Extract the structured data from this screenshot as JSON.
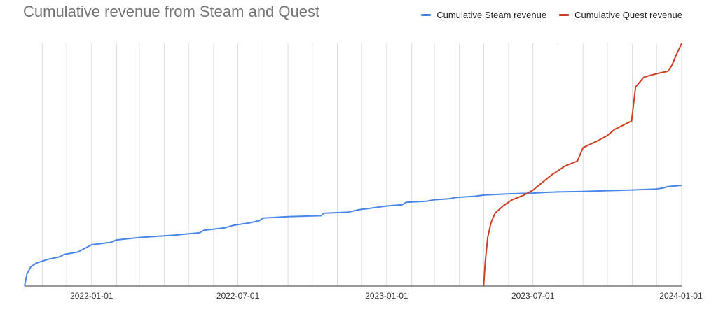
{
  "chart_data": {
    "type": "line",
    "title": "Cumulative revenue from Steam and Quest",
    "xlabel": "",
    "ylabel": "",
    "x_axis": "date",
    "x_ticks": [
      "2022-01-01",
      "2022-07-01",
      "2023-01-01",
      "2023-07-01",
      "2024-01-01"
    ],
    "xlim": [
      "2021-10-10",
      "2024-01-01"
    ],
    "ylim": [
      0,
      100
    ],
    "y_axis_labels": "none",
    "grid": "vertical",
    "legend": "top-right",
    "series": [
      {
        "name": "Cumulative Steam revenue",
        "color": "#4a86e8",
        "x": [
          "2021-10-10",
          "2021-10-13",
          "2021-10-18",
          "2021-10-25",
          "2021-11-08",
          "2021-11-22",
          "2021-11-28",
          "2021-12-15",
          "2022-01-01",
          "2022-01-25",
          "2022-02-01",
          "2022-03-01",
          "2022-04-15",
          "2022-05-15",
          "2022-05-20",
          "2022-06-15",
          "2022-06-25",
          "2022-07-15",
          "2022-07-28",
          "2022-08-01",
          "2022-09-01",
          "2022-10-12",
          "2022-10-15",
          "2022-11-15",
          "2022-11-28",
          "2022-12-10",
          "2023-01-01",
          "2023-01-20",
          "2023-01-25",
          "2023-02-20",
          "2023-02-28",
          "2023-03-20",
          "2023-03-28",
          "2023-04-20",
          "2023-05-01",
          "2023-06-01",
          "2023-07-01",
          "2023-07-15",
          "2023-08-01",
          "2023-09-01",
          "2023-10-01",
          "2023-11-01",
          "2023-12-01",
          "2023-12-10",
          "2023-12-15",
          "2024-01-01"
        ],
        "y": [
          0,
          5,
          8,
          9.5,
          11,
          12,
          13,
          14,
          17,
          18,
          19,
          20,
          21,
          22,
          23,
          24,
          25,
          26,
          27,
          28,
          28.6,
          29,
          30,
          30.5,
          31.5,
          32,
          33,
          33.5,
          34.5,
          35,
          35.5,
          36,
          36.5,
          37,
          37.5,
          38,
          38.3,
          38.6,
          38.8,
          39,
          39.3,
          39.6,
          40,
          40.5,
          41,
          41.5
        ]
      },
      {
        "name": "Cumulative Quest revenue",
        "color": "#cc4125",
        "x": [
          "2023-05-01",
          "2023-05-03",
          "2023-05-06",
          "2023-05-10",
          "2023-05-15",
          "2023-05-25",
          "2023-06-05",
          "2023-06-20",
          "2023-07-01",
          "2023-07-10",
          "2023-07-25",
          "2023-08-10",
          "2023-08-25",
          "2023-09-01",
          "2023-09-20",
          "2023-10-01",
          "2023-10-10",
          "2023-10-31",
          "2023-11-05",
          "2023-11-15",
          "2023-11-20",
          "2023-12-01",
          "2023-12-15",
          "2023-12-20",
          "2023-12-25",
          "2024-01-01"
        ],
        "y": [
          0,
          10,
          20,
          26,
          30,
          33,
          35.5,
          37.5,
          39.5,
          42,
          46,
          49.5,
          51.5,
          57,
          60,
          62,
          64.5,
          68,
          82,
          86,
          86.5,
          87.5,
          88.5,
          91,
          95,
          100
        ]
      }
    ]
  }
}
